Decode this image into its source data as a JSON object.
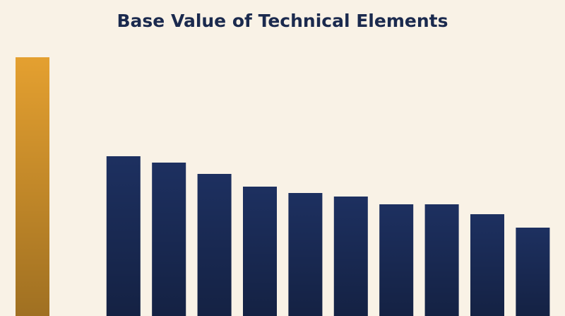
{
  "chart_data": {
    "type": "bar",
    "title": "Base Value of Technical Elements",
    "categories": [
      null,
      null,
      null,
      null,
      null,
      null,
      null,
      null,
      null,
      null,
      null,
      null
    ],
    "values": [
      366,
      null,
      226,
      217,
      201,
      183,
      174,
      169,
      158,
      158,
      144,
      125
    ],
    "colors": [
      "#e4a030",
      "#1d3060",
      "#1d3060",
      "#1d3060",
      "#1d3060",
      "#1d3060",
      "#1d3060",
      "#1d3060",
      "#1d3060",
      "#1d3060",
      "#1d3060",
      "#1d3060"
    ],
    "ylim": [
      0,
      400
    ]
  }
}
